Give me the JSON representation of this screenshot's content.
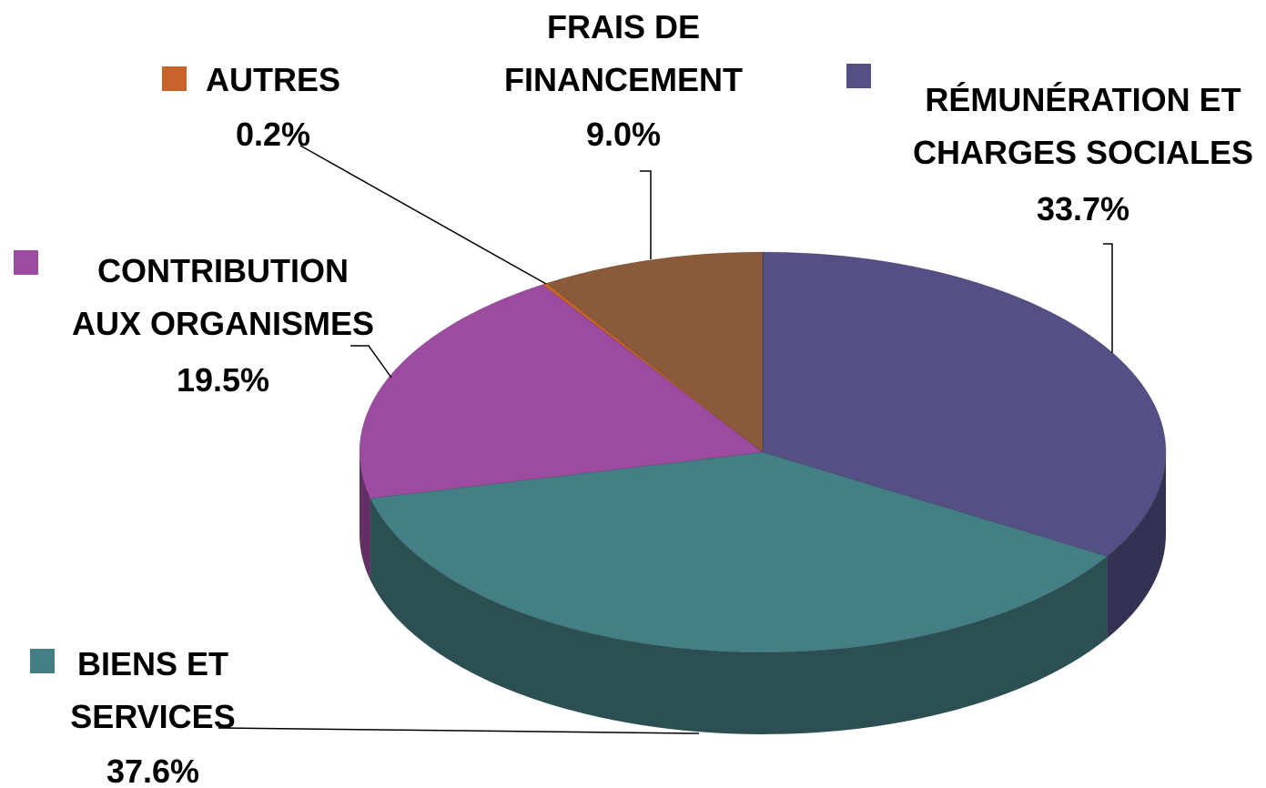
{
  "chart_data": {
    "type": "pie",
    "categories": [
      "RÉMUNÉRATION ET\nCHARGES SOCIALES",
      "BIENS ET\nSERVICES",
      "CONTRIBUTION\nAUX ORGANISMES",
      "AUTRES",
      "FRAIS DE\nFINANCEMENT"
    ],
    "values": [
      33.7,
      37.6,
      19.5,
      0.2,
      9.0
    ],
    "value_labels": [
      "33.7%",
      "37.6%",
      "19.5%",
      "0.2%",
      "9.0%"
    ],
    "colors": [
      "#545086",
      "#457f86",
      "#9c4ba0",
      "#c8642a",
      "#8a5a3a"
    ]
  }
}
